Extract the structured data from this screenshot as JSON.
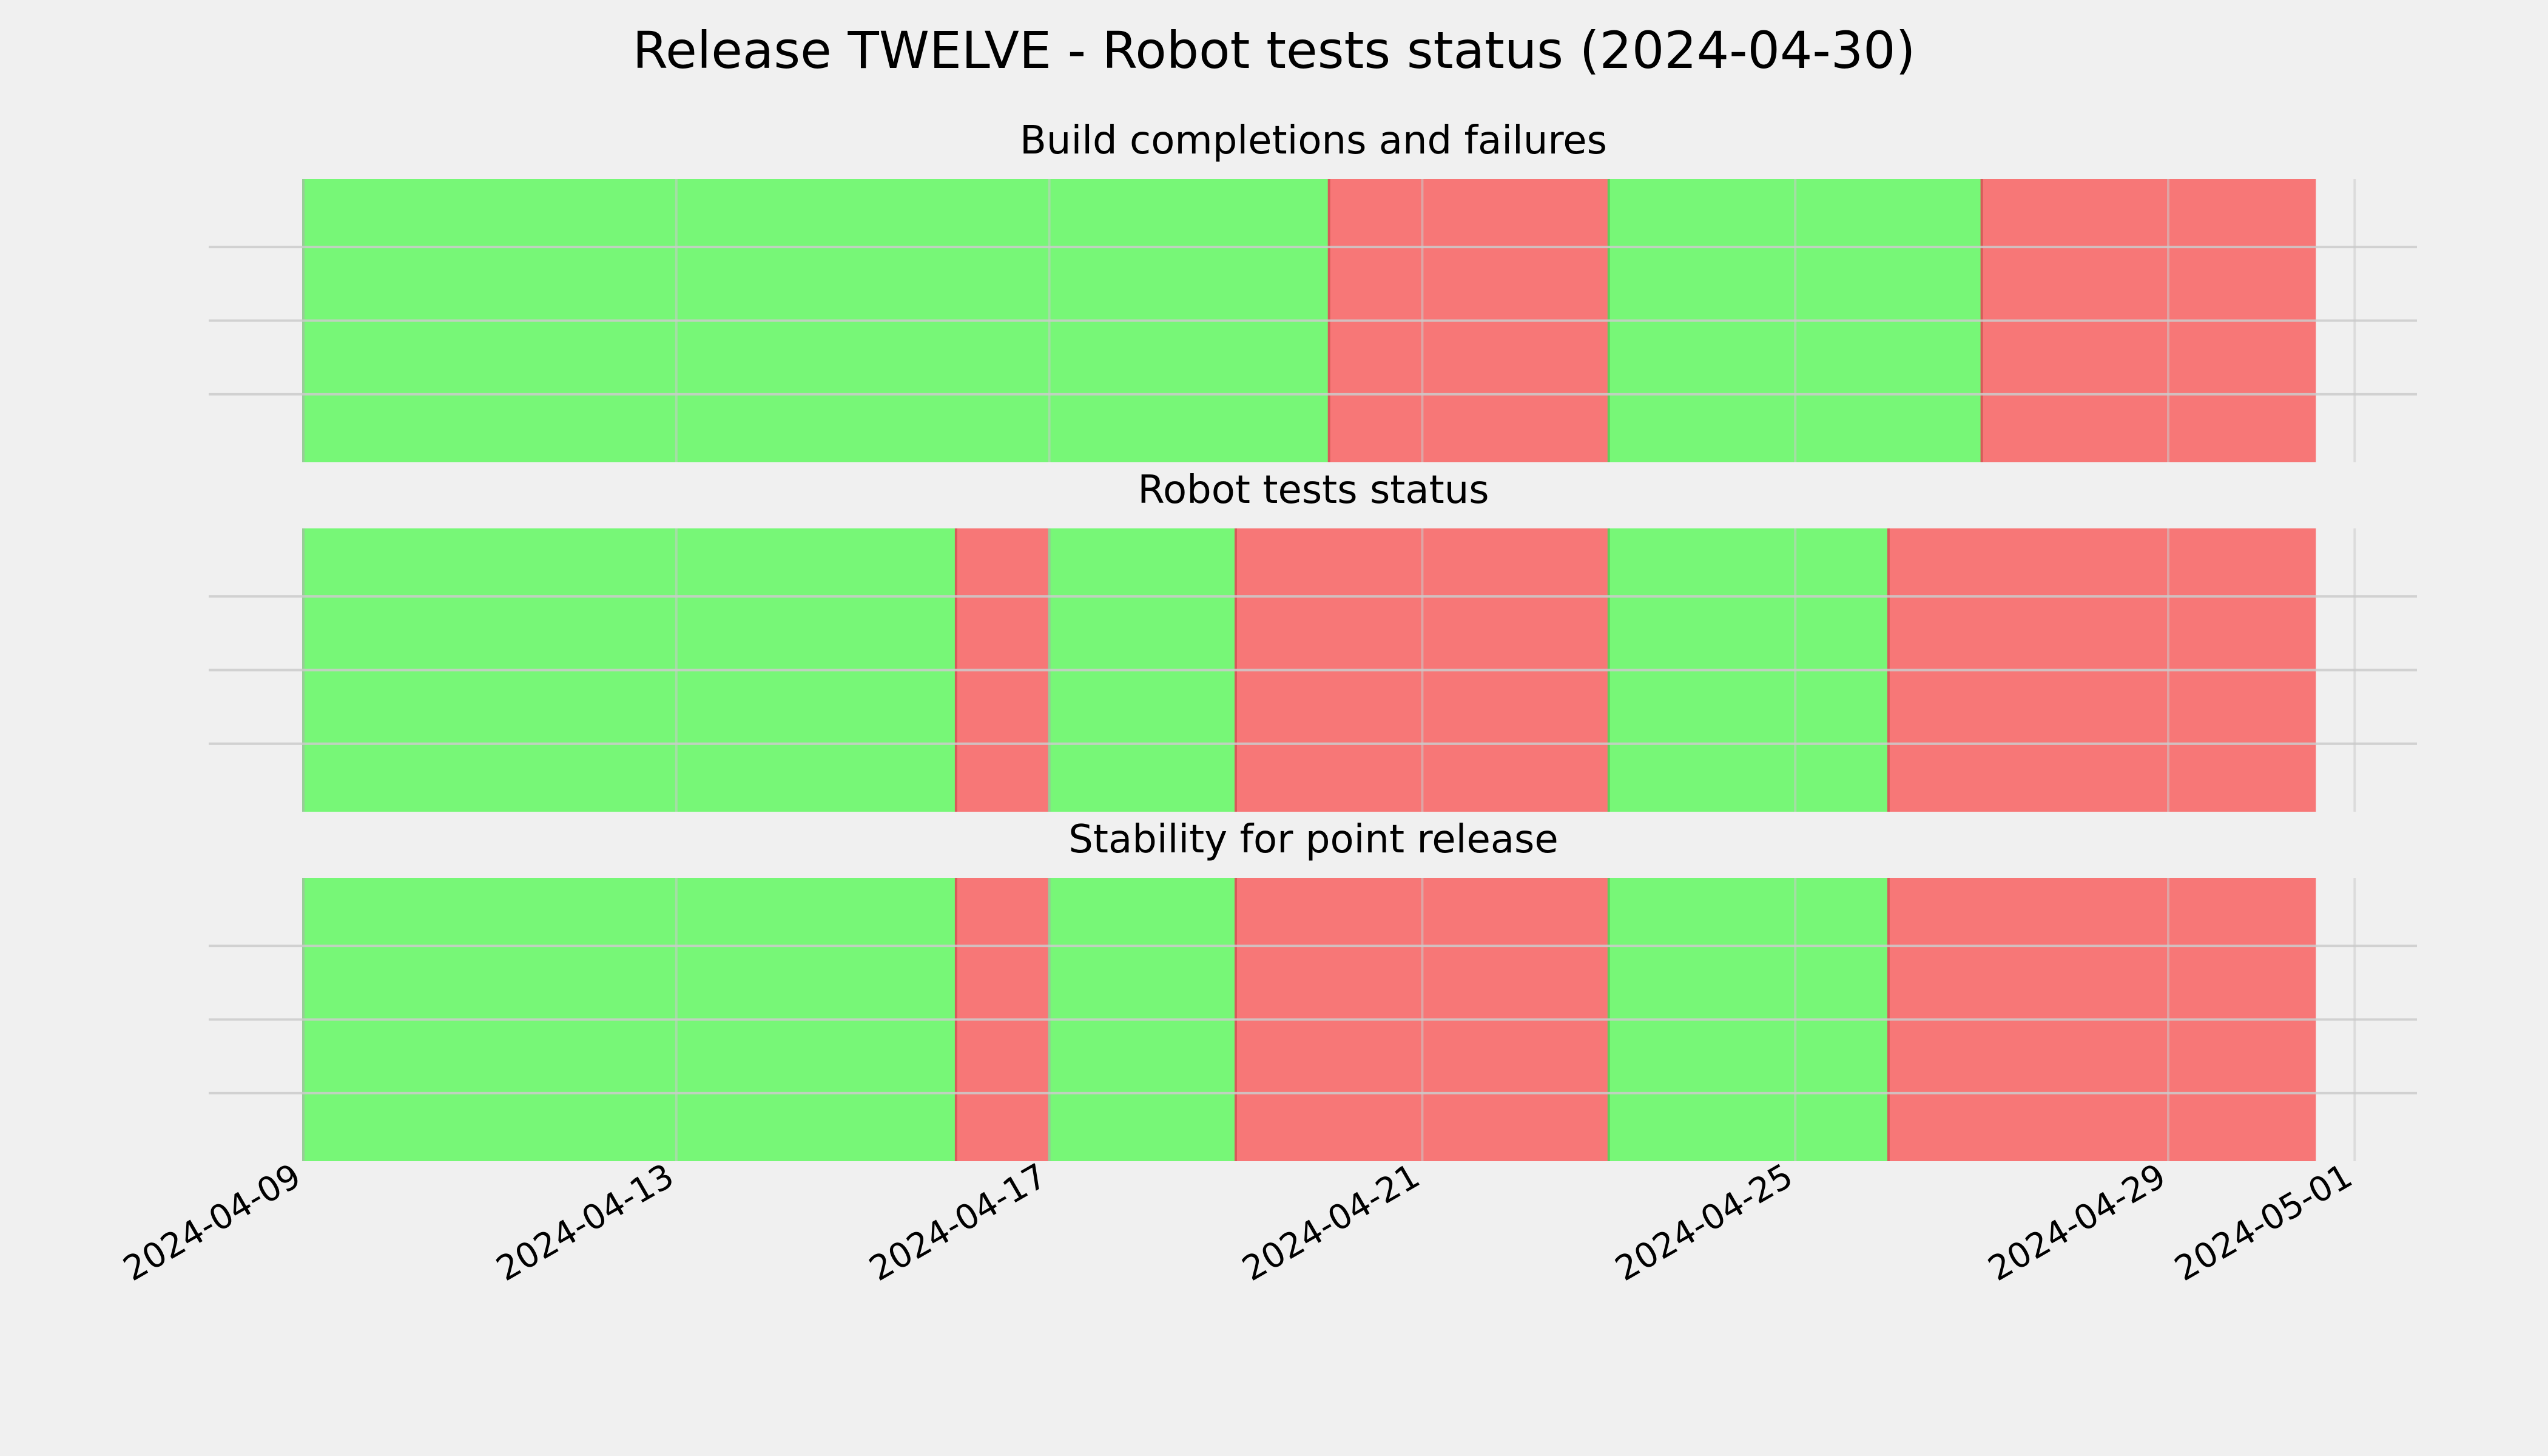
{
  "chart_data": {
    "type": "timeline",
    "title": "Release TWELVE - Robot tests status (2024-04-30)",
    "x_axis": {
      "type": "date",
      "range": [
        "2024-04-09",
        "2024-05-01"
      ],
      "tick_labels": [
        "2024-04-09",
        "2024-04-13",
        "2024-04-17",
        "2024-04-21",
        "2024-04-25",
        "2024-04-29",
        "2024-05-01"
      ]
    },
    "grid": true,
    "colors": {
      "pass": "#77f777",
      "fail": "#f77777",
      "background": "#f0f0f0"
    },
    "panels": [
      {
        "title": "Build completions and failures",
        "segments": [
          {
            "start": "2024-04-09",
            "end": "2024-04-20",
            "status": "pass"
          },
          {
            "start": "2024-04-20",
            "end": "2024-04-23",
            "status": "fail"
          },
          {
            "start": "2024-04-23",
            "end": "2024-04-27",
            "status": "pass"
          },
          {
            "start": "2024-04-27",
            "end": "2024-04-30 14:00",
            "status": "fail"
          }
        ]
      },
      {
        "title": "Robot tests status",
        "segments": [
          {
            "start": "2024-04-09",
            "end": "2024-04-16",
            "status": "pass"
          },
          {
            "start": "2024-04-16",
            "end": "2024-04-17",
            "status": "fail"
          },
          {
            "start": "2024-04-17",
            "end": "2024-04-19",
            "status": "pass"
          },
          {
            "start": "2024-04-19",
            "end": "2024-04-23",
            "status": "fail"
          },
          {
            "start": "2024-04-23",
            "end": "2024-04-26",
            "status": "pass"
          },
          {
            "start": "2024-04-26",
            "end": "2024-04-30 14:00",
            "status": "fail"
          }
        ]
      },
      {
        "title": "Stability for point release",
        "segments": [
          {
            "start": "2024-04-09",
            "end": "2024-04-16",
            "status": "pass"
          },
          {
            "start": "2024-04-16",
            "end": "2024-04-17",
            "status": "fail"
          },
          {
            "start": "2024-04-17",
            "end": "2024-04-19",
            "status": "pass"
          },
          {
            "start": "2024-04-19",
            "end": "2024-04-23",
            "status": "fail"
          },
          {
            "start": "2024-04-23",
            "end": "2024-04-26",
            "status": "pass"
          },
          {
            "start": "2024-04-26",
            "end": "2024-04-30 14:00",
            "status": "fail"
          }
        ]
      }
    ]
  }
}
